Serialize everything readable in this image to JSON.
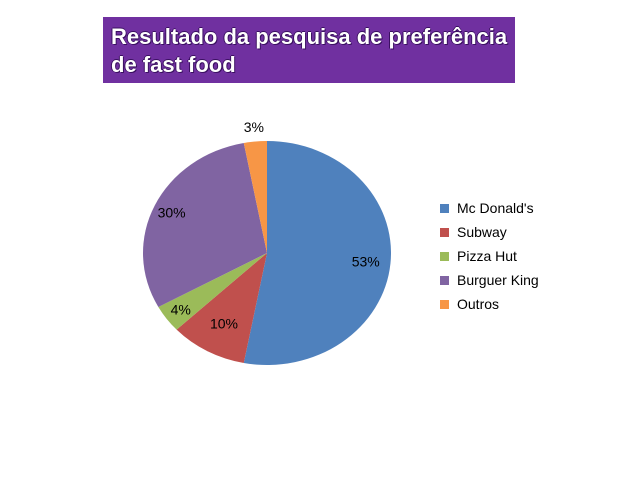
{
  "title": {
    "line1": "Resultado da pesquisa de preferência",
    "line2": "de fast food"
  },
  "chart_data": {
    "type": "pie",
    "categories": [
      "Mc Donald's",
      "Subway",
      "Pizza Hut",
      "Burguer King",
      "Outros"
    ],
    "values": [
      53,
      10,
      4,
      30,
      3
    ],
    "data_labels": [
      "53%",
      "10%",
      "4%",
      "30%",
      "3%"
    ],
    "colors": [
      "#4f81bd",
      "#c0504d",
      "#9bbb59",
      "#8064a2",
      "#f79646"
    ],
    "legend_placement": "right",
    "start": "12 o'clock",
    "direction": "clockwise"
  }
}
